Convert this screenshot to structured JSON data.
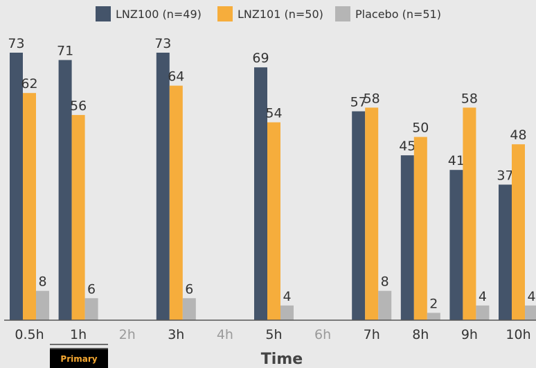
{
  "chart_data": {
    "type": "bar",
    "categories": [
      "0.5h",
      "1h",
      "2h",
      "3h",
      "4h",
      "5h",
      "6h",
      "7h",
      "8h",
      "9h",
      "10h"
    ],
    "measured": [
      true,
      true,
      false,
      true,
      false,
      true,
      false,
      true,
      true,
      true,
      true
    ],
    "series": [
      {
        "name": "LNZ100 (n=49)",
        "color": "#44546a",
        "values": [
          73,
          71,
          null,
          73,
          null,
          69,
          null,
          57,
          45,
          41,
          37
        ]
      },
      {
        "name": "LNZ101 (n=50)",
        "color": "#f6ad3c",
        "values": [
          62,
          56,
          null,
          64,
          null,
          54,
          null,
          58,
          50,
          58,
          48
        ]
      },
      {
        "name": "Placebo (n=51)",
        "color": "#b5b5b5",
        "values": [
          8,
          6,
          null,
          6,
          null,
          4,
          null,
          8,
          2,
          4,
          4
        ]
      }
    ],
    "xlabel": "Time",
    "ylabel": "",
    "ylim": [
      0,
      80
    ],
    "grid": false,
    "legend_position": "top-center",
    "tick_color_active": "#333333",
    "tick_color_inactive": "#9a9a9a"
  },
  "annotation": {
    "badge_label": "Primary",
    "badge_category": "1h"
  }
}
